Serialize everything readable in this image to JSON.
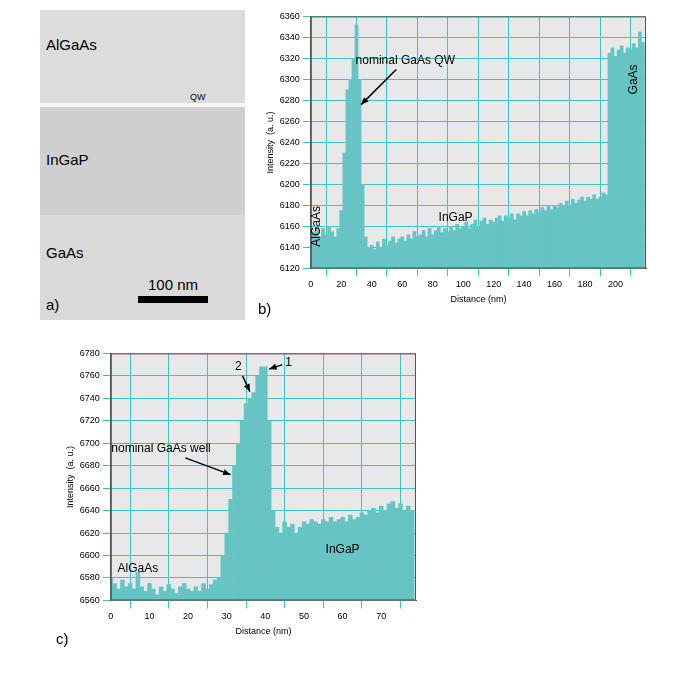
{
  "micrograph": {
    "labels": [
      "AlGaAs",
      "QW",
      "InGaP",
      "GaAs"
    ],
    "scale_bar": "100 nm",
    "panel": "a)"
  },
  "chart_data": [
    {
      "type": "bar",
      "title": "b)",
      "x_label": "Distance (nm)",
      "y_label": "Intensity  (a. u.)",
      "color": "#66c4c4",
      "grid": true,
      "xlim": [
        0,
        220
      ],
      "xticks": [
        0,
        20,
        40,
        60,
        80,
        100,
        120,
        140,
        160,
        180,
        200
      ],
      "ylim": [
        6120,
        6360
      ],
      "yticks": [
        6120,
        6140,
        6160,
        6180,
        6200,
        6220,
        6240,
        6260,
        6280,
        6300,
        6320,
        6340,
        6360
      ],
      "x": [
        0,
        2,
        4,
        6,
        8,
        10,
        12,
        14,
        16,
        18,
        20,
        22,
        24,
        26,
        28,
        30,
        32,
        34,
        36,
        38,
        40,
        42,
        44,
        46,
        48,
        50,
        52,
        54,
        56,
        58,
        60,
        62,
        64,
        66,
        68,
        70,
        72,
        74,
        76,
        78,
        80,
        82,
        84,
        86,
        88,
        90,
        92,
        94,
        96,
        98,
        100,
        102,
        104,
        106,
        108,
        110,
        112,
        114,
        116,
        118,
        120,
        122,
        124,
        126,
        128,
        130,
        132,
        134,
        136,
        138,
        140,
        142,
        144,
        146,
        148,
        150,
        152,
        154,
        156,
        158,
        160,
        162,
        164,
        166,
        168,
        170,
        172,
        174,
        176,
        178,
        180,
        182,
        184,
        186,
        188,
        190,
        192,
        194,
        196,
        198,
        200,
        202,
        204,
        206,
        208,
        210,
        212,
        214,
        216,
        218
      ],
      "values": [
        6150,
        6155,
        6160,
        6150,
        6158,
        6152,
        6160,
        6155,
        6150,
        6158,
        6175,
        6230,
        6290,
        6300,
        6320,
        6352,
        6300,
        6200,
        6150,
        6140,
        6142,
        6138,
        6145,
        6140,
        6148,
        6142,
        6146,
        6150,
        6144,
        6148,
        6150,
        6146,
        6152,
        6148,
        6155,
        6150,
        6152,
        6156,
        6150,
        6158,
        6152,
        6156,
        6160,
        6154,
        6158,
        6155,
        6160,
        6156,
        6162,
        6158,
        6160,
        6164,
        6158,
        6162,
        6166,
        6160,
        6165,
        6168,
        6162,
        6166,
        6164,
        6168,
        6170,
        6165,
        6170,
        6168,
        6172,
        6166,
        6172,
        6170,
        6174,
        6170,
        6175,
        6172,
        6176,
        6174,
        6178,
        6175,
        6180,
        6176,
        6180,
        6178,
        6182,
        6180,
        6184,
        6180,
        6186,
        6182,
        6185,
        6188,
        6184,
        6188,
        6186,
        6190,
        6186,
        6188,
        6192,
        6190,
        6325,
        6330,
        6322,
        6328,
        6332,
        6325,
        6330,
        6328,
        6334,
        6330,
        6345,
        6335
      ],
      "annotations": [
        {
          "text": "nominal GaAs QW",
          "x": 62,
          "y": 6318,
          "arrow": [
            33,
            6276
          ]
        },
        {
          "text": "AlGaAs",
          "x": 4,
          "y": 6160
        },
        {
          "text": "InGaP",
          "x": 95,
          "y": 6168
        },
        {
          "text": "GaAs",
          "x": 212,
          "y": 6300
        }
      ]
    },
    {
      "type": "bar",
      "title": "c)",
      "x_label": "Distance (nm)",
      "y_label": "Intensity  (a. u.)",
      "color": "#66c4c4",
      "grid": true,
      "xlim": [
        0,
        79
      ],
      "xticks": [
        0,
        10,
        20,
        30,
        40,
        50,
        60,
        70
      ],
      "ylim": [
        6560,
        6780
      ],
      "yticks": [
        6560,
        6580,
        6600,
        6620,
        6640,
        6660,
        6680,
        6700,
        6720,
        6740,
        6760,
        6780
      ],
      "x": [
        0,
        1,
        2,
        3,
        4,
        5,
        6,
        7,
        8,
        9,
        10,
        11,
        12,
        13,
        14,
        15,
        16,
        17,
        18,
        19,
        20,
        21,
        22,
        23,
        24,
        25,
        26,
        27,
        28,
        29,
        30,
        31,
        32,
        33,
        34,
        35,
        36,
        37,
        38,
        39,
        40,
        41,
        42,
        43,
        44,
        45,
        46,
        47,
        48,
        49,
        50,
        51,
        52,
        53,
        54,
        55,
        56,
        57,
        58,
        59,
        60,
        61,
        62,
        63,
        64,
        65,
        66,
        67,
        68,
        69,
        70,
        71,
        72,
        73,
        74,
        75,
        76,
        77,
        78
      ],
      "values": [
        6580,
        6575,
        6570,
        6578,
        6572,
        6575,
        6570,
        6585,
        6572,
        6568,
        6575,
        6570,
        6565,
        6572,
        6568,
        6574,
        6570,
        6566,
        6572,
        6575,
        6570,
        6568,
        6572,
        6568,
        6575,
        6570,
        6574,
        6578,
        6580,
        6600,
        6620,
        6650,
        6680,
        6700,
        6720,
        6735,
        6740,
        6745,
        6760,
        6768,
        6768,
        6720,
        6640,
        6625,
        6620,
        6630,
        6625,
        6628,
        6620,
        6625,
        6630,
        6628,
        6632,
        6630,
        6628,
        6632,
        6630,
        6634,
        6630,
        6632,
        6634,
        6630,
        6636,
        6632,
        6634,
        6638,
        6636,
        6640,
        6642,
        6638,
        6644,
        6640,
        6646,
        6648,
        6642,
        6646,
        6640,
        6644,
        6640
      ],
      "annotations": [
        {
          "text": "nominal GaAs well",
          "x": 13,
          "y": 6695,
          "arrow": [
            31,
            6672
          ]
        },
        {
          "text": "2",
          "x": 33,
          "y": 6768,
          "arrow": [
            36,
            6746
          ]
        },
        {
          "text": "1",
          "x": 46,
          "y": 6772,
          "arrow": [
            41,
            6766
          ]
        },
        {
          "text": "AlGaAs",
          "x": 7,
          "y": 6588
        },
        {
          "text": "InGaP",
          "x": 60,
          "y": 6605
        }
      ]
    }
  ]
}
